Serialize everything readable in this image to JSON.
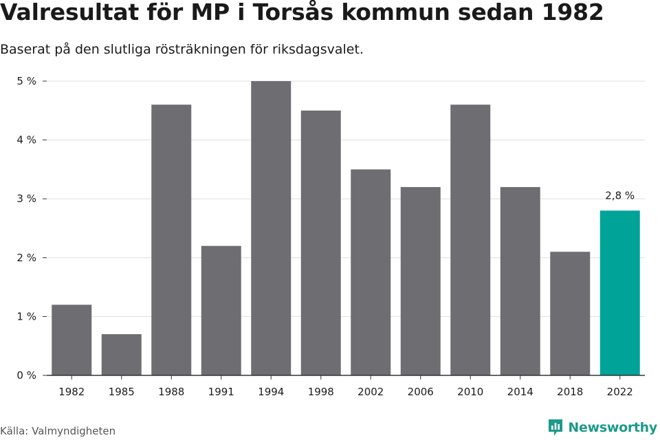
{
  "header": {
    "title": "Valresultat för MP i Torsås kommun sedan 1982",
    "subtitle": "Baserat på den slutliga rösträkningen för riksdagsvalet."
  },
  "chart_data": {
    "type": "bar",
    "categories": [
      "1982",
      "1985",
      "1988",
      "1991",
      "1994",
      "1998",
      "2002",
      "2006",
      "2010",
      "2014",
      "2018",
      "2022"
    ],
    "values": [
      1.2,
      0.7,
      4.6,
      2.2,
      5.0,
      4.5,
      3.5,
      3.2,
      4.6,
      3.2,
      2.1,
      2.8
    ],
    "ylim": [
      0,
      5
    ],
    "yticks": [
      0,
      1,
      2,
      3,
      4,
      5
    ],
    "ytick_labels": [
      "0 %",
      "1 %",
      "2 %",
      "3 %",
      "4 %",
      "5 %"
    ],
    "grid": true,
    "bar_color": "#6e6d72",
    "highlight_color": "#00a398",
    "highlight_index": 11,
    "annotations": [
      {
        "category": "2022",
        "text": "2,8 %"
      }
    ]
  },
  "footer": {
    "source": "Källa: Valmyndigheten",
    "brand": "Newsworthy",
    "brand_icon": "newsworthy-logo-icon"
  }
}
